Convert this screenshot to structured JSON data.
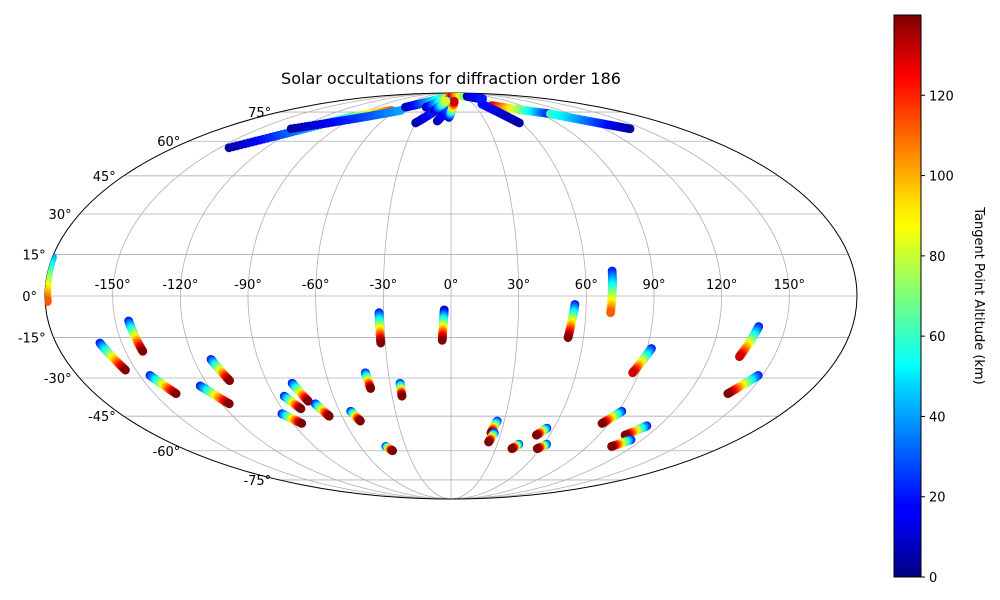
{
  "chart_data": {
    "type": "scatter",
    "projection": "mollweide",
    "title": "Solar occultations for diffraction order 186",
    "xlabel": "",
    "ylabel": "",
    "grid": true,
    "lon_tick_labels": [
      "-150°",
      "-120°",
      "-90°",
      "-60°",
      "-30°",
      "0°",
      "30°",
      "60°",
      "90°",
      "120°",
      "150°"
    ],
    "lat_tick_labels": [
      "-75°",
      "-60°",
      "-45°",
      "-30°",
      "-15°",
      "0°",
      "15°",
      "30°",
      "45°",
      "60°",
      "75°"
    ],
    "lon_ticks": [
      -150,
      -120,
      -90,
      -60,
      -30,
      0,
      30,
      60,
      90,
      120,
      150
    ],
    "lat_ticks": [
      -75,
      -60,
      -45,
      -30,
      -15,
      0,
      15,
      30,
      45,
      60,
      75
    ],
    "colorbar": {
      "label": "Tangent Point Altitude (km)",
      "colormap": "jet",
      "range": [
        0,
        140
      ],
      "ticks": [
        0,
        20,
        40,
        60,
        80,
        100,
        120
      ],
      "tick_labels": [
        "0",
        "20",
        "40",
        "60",
        "80",
        "100",
        "120"
      ]
    },
    "tracks": [
      {
        "lon_start": -180,
        "lat_start": 14,
        "lon_end": -179,
        "lat_end": -2,
        "alt_start": 40,
        "alt_end": 110
      },
      {
        "lon_start": -160,
        "lat_start": -17,
        "lon_end": -155,
        "lat_end": -27,
        "alt_start": 20,
        "alt_end": 140
      },
      {
        "lon_start": -144,
        "lat_start": -9,
        "lon_end": -142,
        "lat_end": -20,
        "alt_start": 20,
        "alt_end": 140
      },
      {
        "lon_start": -145,
        "lat_start": -29,
        "lon_end": -139,
        "lat_end": -36,
        "alt_start": 20,
        "alt_end": 140
      },
      {
        "lon_start": -124,
        "lat_start": -33,
        "lon_end": -116,
        "lat_end": -40,
        "alt_start": 20,
        "alt_end": 140
      },
      {
        "lon_start": -112,
        "lat_start": -23,
        "lon_end": -108,
        "lat_end": -31,
        "alt_start": 20,
        "alt_end": 140
      },
      {
        "lon_start": -92,
        "lat_start": -44,
        "lon_end": -85,
        "lat_end": -48,
        "alt_start": 20,
        "alt_end": 140
      },
      {
        "lon_start": -85,
        "lat_start": -37,
        "lon_end": -80,
        "lat_end": -42,
        "alt_start": 20,
        "alt_end": 140
      },
      {
        "lon_start": -78,
        "lat_start": -32,
        "lon_end": -74,
        "lat_end": -39,
        "alt_start": 20,
        "alt_end": 140
      },
      {
        "lon_start": -71,
        "lat_start": -40,
        "lon_end": -67,
        "lat_end": -45,
        "alt_start": 20,
        "alt_end": 140
      },
      {
        "lon_start": -54,
        "lat_start": -43,
        "lon_end": -51,
        "lat_end": -47,
        "alt_start": 20,
        "alt_end": 140
      },
      {
        "lon_start": -43,
        "lat_start": -58,
        "lon_end": -40,
        "lat_end": -60,
        "alt_start": 20,
        "alt_end": 140
      },
      {
        "lon_start": -41,
        "lat_start": -28,
        "lon_end": -40,
        "lat_end": -34,
        "alt_start": 20,
        "alt_end": 140
      },
      {
        "lon_start": -32,
        "lat_start": -6,
        "lon_end": -32,
        "lat_end": -17,
        "alt_start": 20,
        "alt_end": 140
      },
      {
        "lon_start": -25,
        "lat_start": -32,
        "lon_end": -25,
        "lat_end": -37,
        "alt_start": 20,
        "alt_end": 140
      },
      {
        "lon_start": -3,
        "lat_start": -5,
        "lon_end": -4,
        "lat_end": -16,
        "alt_start": 10,
        "alt_end": 140
      },
      {
        "lon_start": 26,
        "lat_start": -47,
        "lon_end": 24,
        "lat_end": -52,
        "alt_start": 20,
        "alt_end": 140
      },
      {
        "lon_start": 26,
        "lat_start": -52,
        "lon_end": 24,
        "lat_end": -56,
        "alt_start": 20,
        "alt_end": 140
      },
      {
        "lon_start": 44,
        "lat_start": -57,
        "lon_end": 41,
        "lat_end": -59,
        "alt_start": 20,
        "alt_end": 140
      },
      {
        "lon_start": 56,
        "lat_start": -50,
        "lon_end": 52,
        "lat_end": -53,
        "alt_start": 20,
        "alt_end": 140
      },
      {
        "lon_start": 62,
        "lat_start": -57,
        "lon_end": 58,
        "lat_end": -59,
        "alt_start": 20,
        "alt_end": 140
      },
      {
        "lon_start": 55,
        "lat_start": -3,
        "lon_end": 53,
        "lat_end": -15,
        "alt_start": 20,
        "alt_end": 140
      },
      {
        "lon_start": 72,
        "lat_start": 9,
        "lon_end": 71,
        "lat_end": -6,
        "alt_start": 20,
        "alt_end": 110
      },
      {
        "lon_start": 92,
        "lat_start": -19,
        "lon_end": 87,
        "lat_end": -28,
        "alt_start": 20,
        "alt_end": 130
      },
      {
        "lon_start": 92,
        "lat_start": -43,
        "lon_end": 86,
        "lat_end": -48,
        "alt_start": 20,
        "alt_end": 140
      },
      {
        "lon_start": 113,
        "lat_start": -49,
        "lon_end": 106,
        "lat_end": -53,
        "alt_start": 20,
        "alt_end": 140
      },
      {
        "lon_start": 113,
        "lat_start": -55,
        "lon_end": 106,
        "lat_end": -58,
        "alt_start": 20,
        "alt_end": 140
      },
      {
        "lon_start": 138,
        "lat_start": -11,
        "lon_end": 134,
        "lat_end": -22,
        "alt_start": 20,
        "alt_end": 130
      },
      {
        "lon_start": 148,
        "lat_start": -29,
        "lon_end": 140,
        "lat_end": -36,
        "alt_start": 20,
        "alt_end": 140
      },
      {
        "lon_start": -144,
        "lat_start": 57,
        "lon_end": -95,
        "lat_end": 72,
        "alt_start": 5,
        "alt_end": 60
      },
      {
        "lon_start": -95,
        "lat_start": 72,
        "lon_end": -65,
        "lat_end": 76,
        "alt_start": 60,
        "alt_end": 110
      },
      {
        "lon_start": -125,
        "lat_start": 66,
        "lon_end": -55,
        "lat_end": 76,
        "alt_start": 5,
        "alt_end": 40
      },
      {
        "lon_start": -55,
        "lat_start": 78,
        "lon_end": -20,
        "lat_end": 84,
        "alt_start": 5,
        "alt_end": 60
      },
      {
        "lon_start": -30,
        "lat_start": 78,
        "lon_end": 5,
        "lat_end": 88,
        "alt_start": 5,
        "alt_end": 130
      },
      {
        "lon_start": 5,
        "lat_start": 88,
        "lon_end": 60,
        "lat_end": 84,
        "alt_start": 130,
        "alt_end": 20
      },
      {
        "lon_start": -30,
        "lat_start": 69,
        "lon_end": -5,
        "lat_end": 82,
        "alt_start": 5,
        "alt_end": 40
      },
      {
        "lon_start": -12,
        "lat_start": 70,
        "lon_end": 3,
        "lat_end": 82,
        "alt_start": 5,
        "alt_end": 40
      },
      {
        "lon_start": -2,
        "lat_start": 72,
        "lon_end": 5,
        "lat_end": 82,
        "alt_start": 10,
        "alt_end": 130
      },
      {
        "lon_start": -18,
        "lat_start": 76,
        "lon_end": -8,
        "lat_end": 82,
        "alt_start": 5,
        "alt_end": 80
      },
      {
        "lon_start": 52,
        "lat_start": 79,
        "lon_end": 100,
        "lat_end": 74,
        "alt_start": 130,
        "alt_end": 20
      },
      {
        "lon_start": 100,
        "lat_start": 74,
        "lon_end": 140,
        "lat_end": 66,
        "alt_start": 60,
        "alt_end": 5
      },
      {
        "lon_start": 42,
        "lat_start": 80,
        "lon_end": 58,
        "lat_end": 69,
        "alt_start": 20,
        "alt_end": 5
      },
      {
        "lon_start": 40,
        "lat_start": 86,
        "lon_end": 55,
        "lat_end": 84,
        "alt_start": 5,
        "alt_end": 20
      }
    ]
  }
}
